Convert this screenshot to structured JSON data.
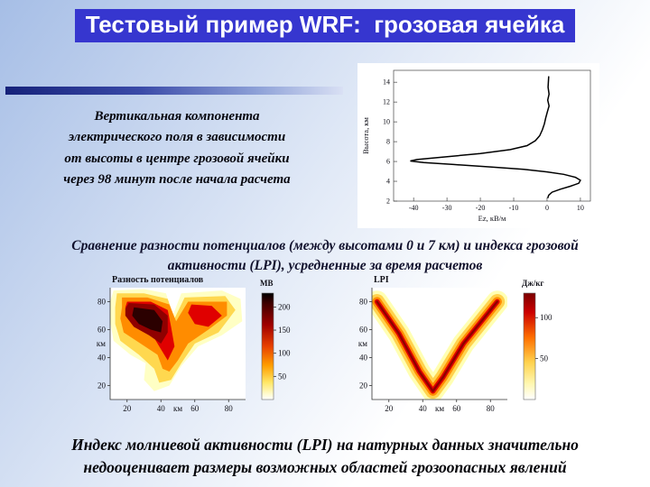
{
  "slide": {
    "title": "Тестовый пример WRF:  грозовая ячейка",
    "intro_lines": [
      "Вертикальная компонента",
      "электрического поля в зависимости",
      "от высоты в центре грозовой ячейки",
      "через 98 минут после начала расчета"
    ],
    "mid_lines": [
      "Сравнение разности потенциалов (между высотами 0 и 7 км) и индекса грозовой",
      "активности (LPI), усредненные за время расчетов"
    ],
    "bottom_lines": [
      "Индекс молниевой активности (LPI) на натурных данных значительно",
      "недооценивает размеры возможных областей грозоопасных явлений"
    ],
    "colors": {
      "title_bg": "#3636cf",
      "title_text": "#ffffff",
      "accent_bar_dark": "#16227a",
      "plot_title": "#1b1b6e"
    }
  },
  "chart_data": [
    {
      "type": "line",
      "title": "",
      "xlabel": "Ez, кВ/м",
      "ylabel": "Высота, км",
      "xticks": [
        -40,
        -30,
        -20,
        -10,
        0,
        10
      ],
      "yticks": [
        2,
        4,
        6,
        8,
        10,
        12,
        14
      ],
      "xlim": [
        -46,
        13
      ],
      "ylim": [
        2,
        15.2
      ],
      "points": [
        [
          0.5,
          14.6
        ],
        [
          0.3,
          13.5
        ],
        [
          0.6,
          12.8
        ],
        [
          0.2,
          12.2
        ],
        [
          0.6,
          11.6
        ],
        [
          0.1,
          11.0
        ],
        [
          -0.4,
          10.4
        ],
        [
          -0.8,
          9.8
        ],
        [
          -1.4,
          9.2
        ],
        [
          -2.2,
          8.6
        ],
        [
          -3.5,
          8.1
        ],
        [
          -6,
          7.6
        ],
        [
          -11,
          7.2
        ],
        [
          -20,
          6.8
        ],
        [
          -31,
          6.45
        ],
        [
          -39,
          6.2
        ],
        [
          -41,
          6.05
        ],
        [
          -37,
          5.9
        ],
        [
          -28,
          5.7
        ],
        [
          -17,
          5.45
        ],
        [
          -7,
          5.2
        ],
        [
          0,
          4.95
        ],
        [
          5,
          4.7
        ],
        [
          8.5,
          4.4
        ],
        [
          10,
          4.1
        ],
        [
          9.5,
          3.8
        ],
        [
          7,
          3.5
        ],
        [
          4,
          3.2
        ],
        [
          1.5,
          2.9
        ],
        [
          0.5,
          2.6
        ],
        [
          0.2,
          2.3
        ]
      ]
    },
    {
      "type": "heatmap",
      "title": "Разность потенциалов",
      "axis_label": "км",
      "xticks": [
        20,
        40,
        60,
        80
      ],
      "yticks": [
        80,
        60,
        40,
        20
      ],
      "xlim": [
        10,
        90
      ],
      "ylim": [
        10,
        90
      ],
      "cbar_label": "МВ",
      "cbar_range": [
        230,
        0
      ],
      "cbar_ticks": [
        200,
        150,
        100,
        50
      ],
      "cbar_stops": [
        [
          0,
          "#000000"
        ],
        [
          0.1,
          "#400000"
        ],
        [
          0.3,
          "#a00000"
        ],
        [
          0.5,
          "#e84000"
        ],
        [
          0.68,
          "#ff9d00"
        ],
        [
          0.84,
          "#ffe766"
        ],
        [
          0.95,
          "#fffbd0"
        ],
        [
          1,
          "#ffffff"
        ]
      ],
      "contours": [
        {
          "color": "#ffffc4",
          "points": [
            [
              12,
              88
            ],
            [
              30,
              89
            ],
            [
              43,
              86
            ],
            [
              47,
              70
            ],
            [
              52,
              86
            ],
            [
              76,
              88
            ],
            [
              87,
              82
            ],
            [
              88,
              66
            ],
            [
              76,
              56
            ],
            [
              62,
              48
            ],
            [
              52,
              34
            ],
            [
              45,
              20
            ],
            [
              36,
              16
            ],
            [
              30,
              24
            ],
            [
              31,
              36
            ],
            [
              22,
              42
            ],
            [
              12,
              52
            ],
            [
              10,
              66
            ],
            [
              10,
              80
            ]
          ]
        },
        {
          "color": "#ffd84f",
          "points": [
            [
              14,
              86
            ],
            [
              30,
              86
            ],
            [
              44,
              82
            ],
            [
              48,
              68
            ],
            [
              54,
              83
            ],
            [
              78,
              84
            ],
            [
              84,
              74
            ],
            [
              74,
              58
            ],
            [
              60,
              50
            ],
            [
              52,
              36
            ],
            [
              46,
              24
            ],
            [
              39,
              22
            ],
            [
              36,
              32
            ],
            [
              27,
              42
            ],
            [
              16,
              52
            ],
            [
              13,
              64
            ],
            [
              13,
              76
            ]
          ]
        },
        {
          "color": "#ff8c00",
          "points": [
            [
              17,
              83
            ],
            [
              32,
              83
            ],
            [
              45,
              78
            ],
            [
              49,
              66
            ],
            [
              56,
              80
            ],
            [
              79,
              80
            ],
            [
              79,
              70
            ],
            [
              68,
              60
            ],
            [
              56,
              50
            ],
            [
              50,
              38
            ],
            [
              45,
              30
            ],
            [
              41,
              32
            ],
            [
              38,
              42
            ],
            [
              28,
              50
            ],
            [
              18,
              58
            ],
            [
              16,
              68
            ],
            [
              17,
              76
            ]
          ]
        },
        {
          "color": "#e00000",
          "points": [
            [
              20,
              80
            ],
            [
              34,
              80
            ],
            [
              44,
              74
            ],
            [
              46,
              62
            ],
            [
              48,
              48
            ],
            [
              44,
              38
            ],
            [
              41,
              44
            ],
            [
              36,
              54
            ],
            [
              24,
              62
            ],
            [
              19,
              70
            ],
            [
              19,
              76
            ]
          ]
        },
        {
          "color": "#e00000",
          "points": [
            [
              58,
              78
            ],
            [
              70,
              77
            ],
            [
              76,
              70
            ],
            [
              68,
              62
            ],
            [
              60,
              64
            ],
            [
              56,
              72
            ]
          ]
        },
        {
          "color": "#8f0000",
          "points": [
            [
              21,
              79
            ],
            [
              36,
              78
            ],
            [
              44,
              70
            ],
            [
              44,
              58
            ],
            [
              40,
              50
            ],
            [
              33,
              56
            ],
            [
              24,
              62
            ],
            [
              19,
              70
            ],
            [
              19,
              75
            ]
          ]
        },
        {
          "color": "#2b0000",
          "points": [
            [
              24,
              76
            ],
            [
              36,
              74
            ],
            [
              41,
              66
            ],
            [
              40,
              58
            ],
            [
              34,
              60
            ],
            [
              27,
              64
            ],
            [
              23,
              70
            ]
          ]
        }
      ]
    },
    {
      "type": "heatmap",
      "title": "LPI",
      "axis_label": "км",
      "xticks": [
        20,
        40,
        60,
        80
      ],
      "yticks": [
        80,
        60,
        40,
        20
      ],
      "xlim": [
        10,
        90
      ],
      "ylim": [
        10,
        90
      ],
      "cbar_label": "Дж/кг",
      "cbar_range": [
        130,
        0
      ],
      "cbar_ticks": [
        100,
        50
      ],
      "cbar_stops": [
        [
          0,
          "#7a0000"
        ],
        [
          0.18,
          "#cc0000"
        ],
        [
          0.42,
          "#ff7000"
        ],
        [
          0.65,
          "#ffd24d"
        ],
        [
          0.85,
          "#fff7b0"
        ],
        [
          1,
          "#ffffff"
        ]
      ],
      "bands": {
        "points": [
          [
            13,
            80
          ],
          [
            26,
            57
          ],
          [
            38,
            30
          ],
          [
            46,
            16
          ],
          [
            52,
            26
          ],
          [
            64,
            50
          ],
          [
            84,
            80
          ]
        ],
        "strokes": [
          {
            "color": "#ffffb3",
            "width": 13
          },
          {
            "color": "#ffd24d",
            "width": 9
          },
          {
            "color": "#ff8c00",
            "width": 5.5
          },
          {
            "color": "#e00000",
            "width": 3
          },
          {
            "color": "#8f0000",
            "width": 1.3
          }
        ]
      }
    }
  ]
}
